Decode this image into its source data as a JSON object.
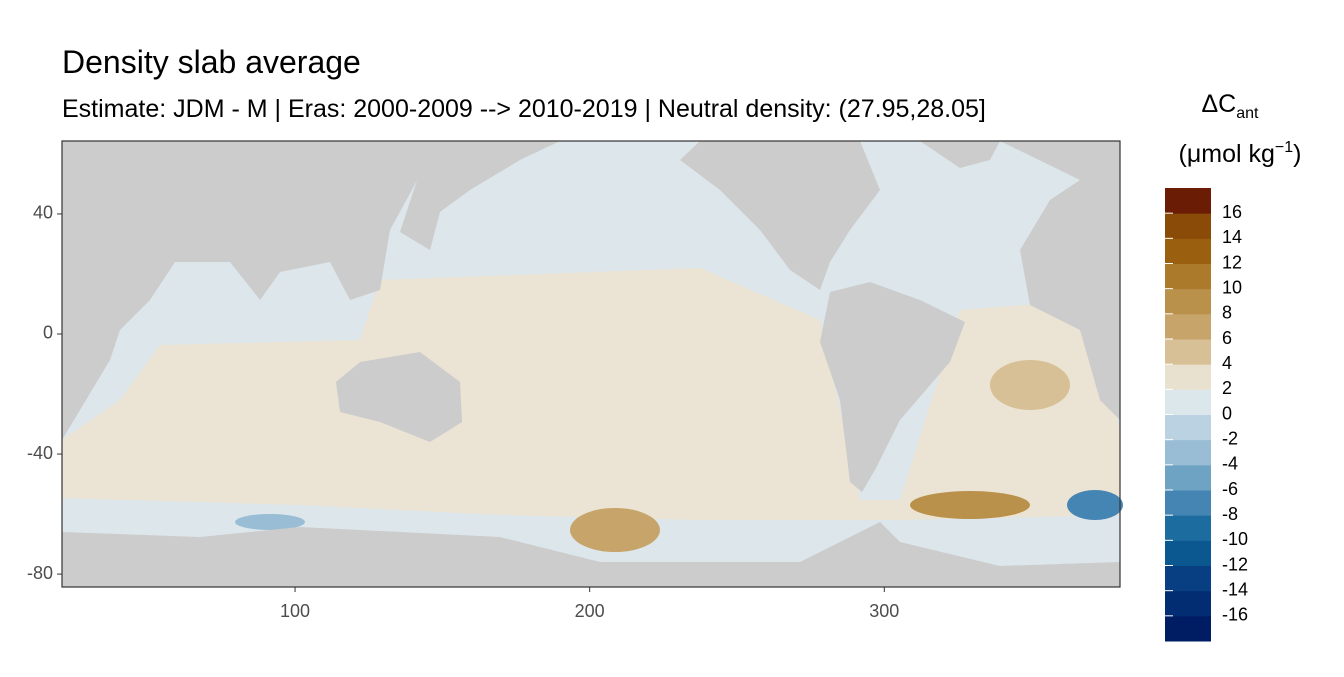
{
  "chart_data": {
    "type": "map",
    "title": "Density slab average",
    "subtitle": "Estimate: JDM - M | Eras: 2000-2009 --> 2010-2019 | Neutral density: (27.95,28.05]",
    "xlim": [
      20.9,
      380
    ],
    "ylim": [
      -84.3,
      64.3
    ],
    "xticks": [
      100,
      200,
      300
    ],
    "yticks": [
      40,
      0,
      -40,
      -80
    ],
    "legend": {
      "title": [
        "ΔC",
        "ant"
      ],
      "unit": [
        "(μmol kg",
        "−1",
        ")"
      ],
      "limits": [
        -18,
        18
      ],
      "breaks": [
        16,
        14,
        12,
        10,
        8,
        6,
        4,
        2,
        0,
        -2,
        -4,
        -6,
        -8,
        -10,
        -12,
        -14,
        -16
      ],
      "colors": [
        "#001c62",
        "#032d73",
        "#073f82",
        "#0b5790",
        "#1d6c9f",
        "#4585b3",
        "#6fa3c4",
        "#98bdd4",
        "#bad2e1",
        "#dce7ec",
        "#e9e1d0",
        "#d7c095",
        "#c7a56a",
        "#b9914b",
        "#ab7a2a",
        "#9a600f",
        "#8a4a08",
        "#6a1c04"
      ]
    }
  }
}
